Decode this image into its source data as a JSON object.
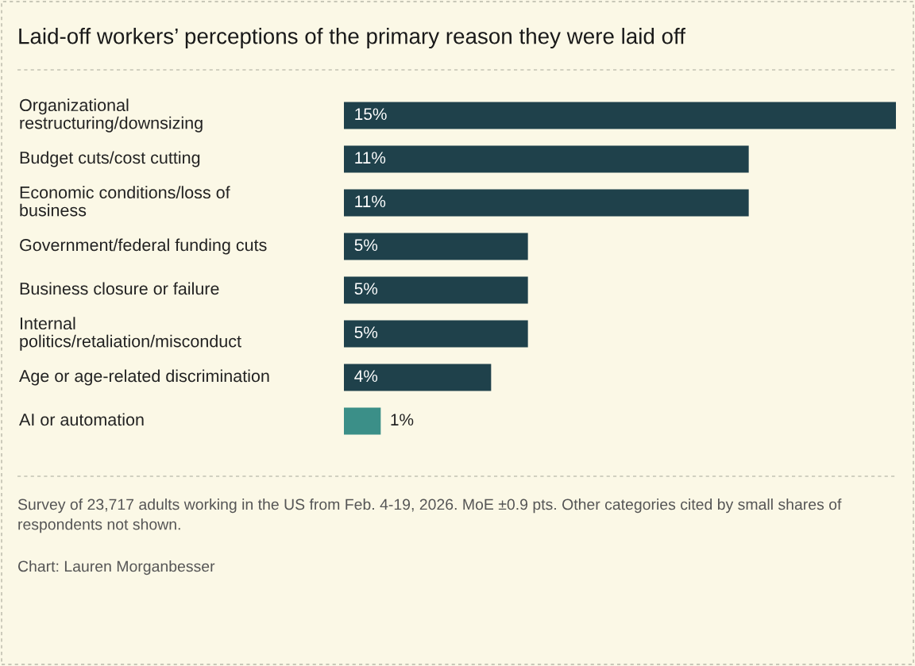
{
  "chart_data": {
    "type": "bar",
    "orientation": "horizontal",
    "title": "Laid-off workers’ perceptions of the primary reason they were laid off",
    "categories": [
      "Organizational\nrestructuring/downsizing",
      "Budget cuts/cost cutting",
      "Economic conditions/loss of\nbusiness",
      "Government/federal funding cuts",
      "Business closure or failure",
      "Internal\npolitics/retaliation/misconduct",
      "Age or age-related discrimination",
      "AI or automation"
    ],
    "values": [
      15,
      11,
      11,
      5,
      5,
      5,
      4,
      1
    ],
    "colors": [
      "#1f414b",
      "#1f414b",
      "#1f414b",
      "#1f414b",
      "#1f414b",
      "#1f414b",
      "#1f414b",
      "#3b8f88"
    ],
    "value_labels": [
      "15%",
      "11%",
      "11%",
      "5%",
      "5%",
      "5%",
      "4%",
      "1%"
    ],
    "annotations": [
      "Survey of 23,717 adults working in the US from Feb. 4-19, 2026. MoE ±0.9 pts. Other categories cited by small shares of respondents not shown.",
      "Chart: Lauren Morganbesser"
    ]
  }
}
